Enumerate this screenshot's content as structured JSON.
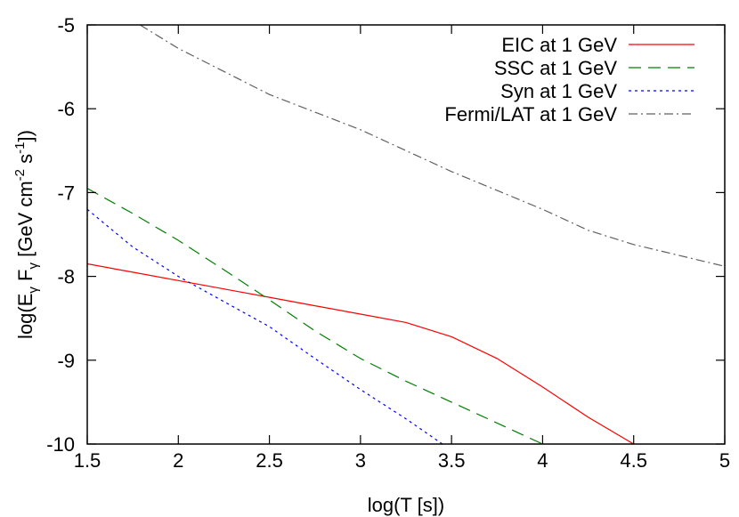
{
  "chart_data": {
    "type": "line",
    "title": "",
    "xlabel": "log(T [s])",
    "ylabel": {
      "parts": [
        "log(E",
        "γ",
        " F",
        "γ",
        " [GeV cm",
        "-2",
        " s",
        "-1",
        "])"
      ]
    },
    "xlim": [
      1.5,
      5
    ],
    "ylim": [
      -10,
      -5
    ],
    "xticks": [
      1.5,
      2,
      2.5,
      3,
      3.5,
      4,
      4.5,
      5
    ],
    "xtick_labels": [
      "1.5",
      "2",
      "2.5",
      "3",
      "3.5",
      "4",
      "4.5",
      "5"
    ],
    "yticks": [
      -10,
      -9,
      -8,
      -7,
      -6,
      -5
    ],
    "ytick_labels": [
      "-10",
      "-9",
      "-8",
      "-7",
      "-6",
      "-5"
    ],
    "grid": false,
    "legend_position": "top-right",
    "series": [
      {
        "name": "EIC at 1 GeV",
        "color": "#ff0000",
        "dash": "solid",
        "x": [
          1.5,
          1.75,
          2.0,
          2.25,
          2.5,
          2.75,
          3.0,
          3.25,
          3.5,
          3.75,
          4.0,
          4.25,
          4.5
        ],
        "y": [
          -7.85,
          -7.95,
          -8.05,
          -8.15,
          -8.25,
          -8.35,
          -8.45,
          -8.55,
          -8.72,
          -8.98,
          -9.32,
          -9.68,
          -10.0
        ]
      },
      {
        "name": "SSC at 1 GeV",
        "color": "#008000",
        "dash": "long",
        "x": [
          1.5,
          1.75,
          2.0,
          2.25,
          2.5,
          2.75,
          3.0,
          3.25,
          3.5,
          3.75,
          4.0
        ],
        "y": [
          -6.95,
          -7.25,
          -7.57,
          -7.92,
          -8.28,
          -8.65,
          -8.98,
          -9.25,
          -9.5,
          -9.75,
          -10.0
        ]
      },
      {
        "name": "Syn at 1 GeV",
        "color": "#0000ff",
        "dash": "short",
        "x": [
          1.5,
          1.75,
          2.0,
          2.25,
          2.5,
          2.75,
          3.0,
          3.25,
          3.45
        ],
        "y": [
          -7.2,
          -7.65,
          -8.0,
          -8.3,
          -8.6,
          -8.98,
          -9.35,
          -9.7,
          -10.0
        ]
      },
      {
        "name": "Fermi/LAT at 1 GeV",
        "color": "#606060",
        "dash": "dashdot",
        "x": [
          1.79,
          2.0,
          2.5,
          3.0,
          3.5,
          4.0,
          4.25,
          4.5,
          5.0
        ],
        "y": [
          -5.0,
          -5.28,
          -5.83,
          -6.25,
          -6.75,
          -7.2,
          -7.45,
          -7.62,
          -7.88
        ]
      }
    ]
  }
}
